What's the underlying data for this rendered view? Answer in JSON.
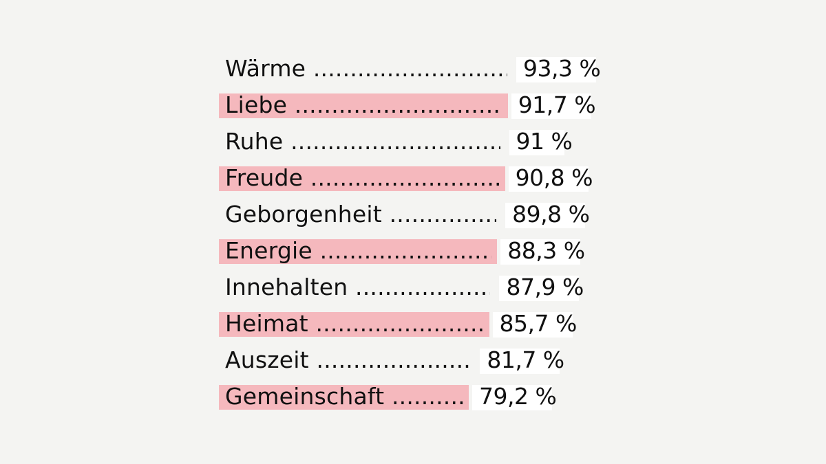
{
  "chart_data": {
    "type": "bar",
    "orientation": "horizontal",
    "categories": [
      "Wärme",
      "Liebe",
      "Ruhe",
      "Freude",
      "Geborgenheit",
      "Energie",
      "Innehalten",
      "Heimat",
      "Auszeit",
      "Gemeinschaft"
    ],
    "values": [
      93.3,
      91.7,
      91,
      90.8,
      89.8,
      88.3,
      87.9,
      85.7,
      81.7,
      79.2
    ],
    "value_labels": [
      "93,3 %",
      "91,7 %",
      "91 %",
      "90,8 %",
      "89,8 %",
      "88,3 %",
      "87,9 %",
      "85,7 %",
      "81,7 %",
      "79,2 %"
    ],
    "title": "",
    "xlabel": "",
    "ylabel": "",
    "unit": "%",
    "grid": false,
    "legend": "none",
    "colors": {
      "background": "#f4f4f2",
      "bar_highlight": "#f5b8bd",
      "value_box": "#ffffff",
      "text": "#111111"
    },
    "highlighted_rows": [
      false,
      true,
      false,
      true,
      false,
      true,
      false,
      true,
      false,
      true
    ]
  }
}
